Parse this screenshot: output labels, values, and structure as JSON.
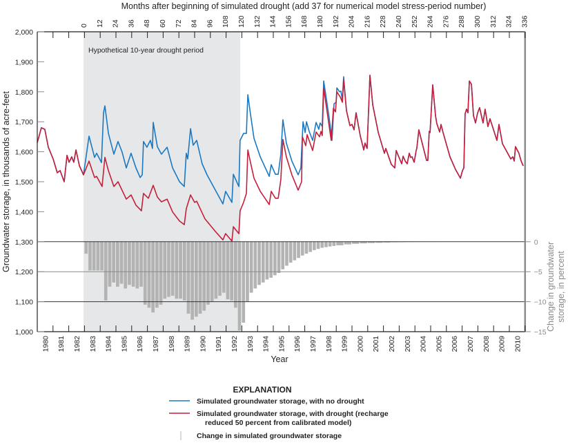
{
  "chart_data": {
    "type": "line",
    "top_axis_label": "Months after beginning of simulated drought (add 37 for numerical model stress-period number)",
    "top_ticks": [
      "0",
      "12",
      "24",
      "36",
      "48",
      "60",
      "72",
      "84",
      "96",
      "108",
      "120",
      "132",
      "144",
      "156",
      "168",
      "180",
      "192",
      "204",
      "216",
      "228",
      "240",
      "252",
      "264",
      "276",
      "288",
      "300",
      "312",
      "324",
      "336"
    ],
    "xlabel": "Year",
    "x_ticks": [
      "1980",
      "1981",
      "1982",
      "1983",
      "1984",
      "1985",
      "1986",
      "1987",
      "1988",
      "1989",
      "1990",
      "1991",
      "1992",
      "1993",
      "1994",
      "1995",
      "1996",
      "1997",
      "1998",
      "1999",
      "2000",
      "2001",
      "2002",
      "2003",
      "2004",
      "2005",
      "2006",
      "2007",
      "2008",
      "2009",
      "2010"
    ],
    "xlim": [
      1980,
      2011
    ],
    "ylabel": "Groundwater storage, in thousands of acre-feet",
    "y_ticks": [
      "1,000",
      "1,100",
      "1,200",
      "1,300",
      "1,400",
      "1,500",
      "1,600",
      "1,700",
      "1,800",
      "1,900",
      "2,000"
    ],
    "ylim": [
      1000,
      2000
    ],
    "y2label_line1": "Change in groundwater",
    "y2label_line2": "storage, in percent",
    "y2_ticks": [
      "0",
      "−5",
      "−10",
      "−15"
    ],
    "y2lim": [
      -15,
      0
    ],
    "drought_period": {
      "label": "Hypothetical 10-year drought period",
      "start": 1982.94,
      "end": 1992.9
    },
    "colors": {
      "no_drought": "#1a78c2",
      "drought": "#c41e3a",
      "change": "#b3b3b3",
      "shade": "#e6e7e8"
    },
    "legend": {
      "title": "EXPLANATION",
      "no_drought": "Simulated groundwater storage, with no drought",
      "drought_line1": "Simulated groundwater storage, with drought (recharge",
      "drought_line2": "reduced 50 percent from calibrated model)",
      "change": "Change in simulated groundwater storage"
    },
    "common_pre": [
      [
        1980.0,
        1630
      ],
      [
        1980.26,
        1680
      ],
      [
        1980.48,
        1675
      ],
      [
        1980.7,
        1615
      ],
      [
        1981.01,
        1576
      ],
      [
        1981.27,
        1530
      ],
      [
        1981.45,
        1537
      ],
      [
        1981.71,
        1500
      ],
      [
        1981.89,
        1588
      ],
      [
        1982.02,
        1565
      ],
      [
        1982.19,
        1583
      ],
      [
        1982.32,
        1565
      ],
      [
        1982.46,
        1606
      ],
      [
        1982.68,
        1553
      ],
      [
        1982.94,
        1523
      ]
    ],
    "series": [
      {
        "name": "Simulated groundwater storage, with no drought",
        "points": [
          [
            1983.29,
            1652
          ],
          [
            1983.64,
            1581
          ],
          [
            1983.77,
            1595
          ],
          [
            1984.08,
            1564
          ],
          [
            1984.21,
            1730
          ],
          [
            1984.3,
            1753
          ],
          [
            1984.52,
            1661
          ],
          [
            1984.87,
            1592
          ],
          [
            1985.13,
            1634
          ],
          [
            1985.39,
            1599
          ],
          [
            1985.66,
            1546
          ],
          [
            1985.96,
            1595
          ],
          [
            1986.27,
            1546
          ],
          [
            1986.54,
            1514
          ],
          [
            1986.67,
            1523
          ],
          [
            1986.75,
            1634
          ],
          [
            1986.97,
            1615
          ],
          [
            1987.19,
            1638
          ],
          [
            1987.32,
            1611
          ],
          [
            1987.37,
            1698
          ],
          [
            1987.63,
            1617
          ],
          [
            1987.89,
            1592
          ],
          [
            1988.25,
            1615
          ],
          [
            1988.6,
            1546
          ],
          [
            1989.04,
            1500
          ],
          [
            1989.34,
            1484
          ],
          [
            1989.47,
            1595
          ],
          [
            1989.56,
            1576
          ],
          [
            1989.74,
            1677
          ],
          [
            1989.91,
            1622
          ],
          [
            1990.13,
            1638
          ],
          [
            1990.48,
            1560
          ],
          [
            1990.79,
            1523
          ],
          [
            1991.32,
            1472
          ],
          [
            1991.8,
            1426
          ],
          [
            1991.97,
            1468
          ],
          [
            1992.37,
            1431
          ],
          [
            1992.46,
            1525
          ],
          [
            1992.81,
            1484
          ],
          [
            1992.89,
            1638
          ],
          [
            1993.11,
            1661
          ],
          [
            1993.29,
            1661
          ],
          [
            1993.38,
            1790
          ],
          [
            1993.55,
            1726
          ],
          [
            1993.77,
            1645
          ],
          [
            1994.17,
            1583
          ],
          [
            1994.74,
            1518
          ],
          [
            1994.87,
            1557
          ],
          [
            1995.13,
            1525
          ],
          [
            1995.31,
            1525
          ],
          [
            1995.48,
            1592
          ],
          [
            1995.61,
            1707
          ],
          [
            1995.83,
            1629
          ],
          [
            1996.18,
            1569
          ],
          [
            1996.58,
            1523
          ],
          [
            1996.75,
            1546
          ],
          [
            1996.89,
            1700
          ],
          [
            1997.02,
            1664
          ],
          [
            1997.11,
            1700
          ],
          [
            1997.28,
            1668
          ],
          [
            1997.5,
            1638
          ],
          [
            1997.72,
            1698
          ],
          [
            1997.89,
            1675
          ],
          [
            1997.98,
            1696
          ],
          [
            1998.11,
            1684
          ],
          [
            1998.2,
            1836
          ],
          [
            1998.55,
            1714
          ],
          [
            1998.73,
            1638
          ],
          [
            1998.86,
            1760
          ],
          [
            1998.99,
            1765
          ],
          [
            1999.04,
            1813
          ],
          [
            1999.21,
            1800
          ],
          [
            1999.3,
            1802
          ],
          [
            1999.39,
            1772
          ],
          [
            1999.47,
            1850
          ]
        ]
      },
      {
        "name": "Simulated groundwater storage, with drought (recharge reduced 50 percent from calibrated model)",
        "points": [
          [
            1983.29,
            1569
          ],
          [
            1983.64,
            1514
          ],
          [
            1983.77,
            1518
          ],
          [
            1984.12,
            1484
          ],
          [
            1984.3,
            1581
          ],
          [
            1984.52,
            1537
          ],
          [
            1984.87,
            1484
          ],
          [
            1985.13,
            1500
          ],
          [
            1985.66,
            1442
          ],
          [
            1985.96,
            1456
          ],
          [
            1986.27,
            1422
          ],
          [
            1986.62,
            1403
          ],
          [
            1986.75,
            1461
          ],
          [
            1987.06,
            1445
          ],
          [
            1987.37,
            1488
          ],
          [
            1987.63,
            1449
          ],
          [
            1987.89,
            1433
          ],
          [
            1988.25,
            1442
          ],
          [
            1988.6,
            1399
          ],
          [
            1989.04,
            1369
          ],
          [
            1989.34,
            1357
          ],
          [
            1989.47,
            1410
          ],
          [
            1989.74,
            1456
          ],
          [
            1990.0,
            1431
          ],
          [
            1990.13,
            1435
          ],
          [
            1990.66,
            1376
          ],
          [
            1991.32,
            1334
          ],
          [
            1991.8,
            1306
          ],
          [
            1991.97,
            1327
          ],
          [
            1992.37,
            1302
          ],
          [
            1992.46,
            1350
          ],
          [
            1992.81,
            1327
          ],
          [
            1992.89,
            1403
          ],
          [
            1993.11,
            1431
          ],
          [
            1993.29,
            1461
          ],
          [
            1993.38,
            1606
          ],
          [
            1993.55,
            1565
          ],
          [
            1993.77,
            1512
          ],
          [
            1994.17,
            1468
          ],
          [
            1994.74,
            1424
          ],
          [
            1994.87,
            1468
          ],
          [
            1995.13,
            1445
          ],
          [
            1995.31,
            1445
          ],
          [
            1995.48,
            1507
          ],
          [
            1995.61,
            1641
          ],
          [
            1995.83,
            1583
          ],
          [
            1996.18,
            1523
          ],
          [
            1996.58,
            1472
          ],
          [
            1996.8,
            1500
          ],
          [
            1996.85,
            1650
          ],
          [
            1997.06,
            1620
          ],
          [
            1997.15,
            1657
          ],
          [
            1997.5,
            1604
          ],
          [
            1997.72,
            1666
          ],
          [
            1997.94,
            1650
          ],
          [
            1998.03,
            1668
          ],
          [
            1998.11,
            1654
          ],
          [
            1998.2,
            1813
          ],
          [
            1998.68,
            1638
          ],
          [
            1998.82,
            1745
          ],
          [
            1998.95,
            1733
          ],
          [
            1999.04,
            1800
          ],
          [
            1999.25,
            1783
          ],
          [
            1999.39,
            1765
          ],
          [
            1999.47,
            1841
          ]
        ]
      }
    ],
    "common_post": [
      [
        1999.65,
        1737
      ],
      [
        1999.87,
        1687
      ],
      [
        2000.0,
        1691
      ],
      [
        2000.13,
        1673
      ],
      [
        2000.26,
        1730
      ],
      [
        2000.53,
        1652
      ],
      [
        2000.75,
        1606
      ],
      [
        2000.83,
        1629
      ],
      [
        2000.96,
        1611
      ],
      [
        2001.14,
        1855
      ],
      [
        2001.32,
        1756
      ],
      [
        2001.67,
        1664
      ],
      [
        2002.06,
        1595
      ],
      [
        2002.15,
        1611
      ],
      [
        2002.5,
        1558
      ],
      [
        2002.72,
        1546
      ],
      [
        2002.81,
        1604
      ],
      [
        2003.16,
        1560
      ],
      [
        2003.25,
        1585
      ],
      [
        2003.38,
        1569
      ],
      [
        2003.51,
        1560
      ],
      [
        2003.64,
        1595
      ],
      [
        2003.73,
        1581
      ],
      [
        2003.82,
        1583
      ],
      [
        2003.95,
        1565
      ],
      [
        2004.08,
        1604
      ],
      [
        2004.12,
        1611
      ],
      [
        2004.25,
        1673
      ],
      [
        2004.47,
        1627
      ],
      [
        2004.74,
        1571
      ],
      [
        2004.82,
        1571
      ],
      [
        2004.91,
        1668
      ],
      [
        2004.96,
        1664
      ],
      [
        2005.13,
        1823
      ],
      [
        2005.31,
        1719
      ],
      [
        2005.39,
        1694
      ],
      [
        2005.57,
        1666
      ],
      [
        2005.66,
        1691
      ],
      [
        2005.79,
        1664
      ],
      [
        2006.23,
        1583
      ],
      [
        2006.58,
        1541
      ],
      [
        2006.89,
        1512
      ],
      [
        2007.02,
        1537
      ],
      [
        2007.11,
        1546
      ],
      [
        2007.19,
        1726
      ],
      [
        2007.28,
        1742
      ],
      [
        2007.37,
        1730
      ],
      [
        2007.46,
        1836
      ],
      [
        2007.59,
        1825
      ],
      [
        2007.72,
        1721
      ],
      [
        2007.85,
        1696
      ],
      [
        2007.98,
        1728
      ],
      [
        2008.11,
        1747
      ],
      [
        2008.33,
        1696
      ],
      [
        2008.46,
        1742
      ],
      [
        2008.64,
        1684
      ],
      [
        2008.77,
        1710
      ],
      [
        2009.21,
        1638
      ],
      [
        2009.34,
        1691
      ],
      [
        2009.56,
        1627
      ],
      [
        2009.78,
        1606
      ],
      [
        2010.09,
        1576
      ],
      [
        2010.22,
        1583
      ],
      [
        2010.31,
        1569
      ],
      [
        2010.39,
        1617
      ],
      [
        2010.61,
        1595
      ],
      [
        2010.75,
        1569
      ],
      [
        2010.88,
        1553
      ]
    ],
    "percent_change": [
      [
        1983.0,
        -2
      ],
      [
        1983.25,
        -4.8
      ],
      [
        1983.5,
        -4.8
      ],
      [
        1983.75,
        -4.8
      ],
      [
        1984.0,
        -4.8
      ],
      [
        1984.25,
        -9.8
      ],
      [
        1984.5,
        -7.5
      ],
      [
        1984.75,
        -6.8
      ],
      [
        1985.0,
        -7.5
      ],
      [
        1985.25,
        -7.0
      ],
      [
        1985.5,
        -7.8
      ],
      [
        1985.75,
        -7.2
      ],
      [
        1986.0,
        -7.5
      ],
      [
        1986.25,
        -7.8
      ],
      [
        1986.5,
        -7.5
      ],
      [
        1986.75,
        -10.5
      ],
      [
        1987.0,
        -11
      ],
      [
        1987.25,
        -11.8
      ],
      [
        1987.5,
        -11
      ],
      [
        1987.75,
        -10.5
      ],
      [
        1988.0,
        -9.5
      ],
      [
        1988.25,
        -9.2
      ],
      [
        1988.5,
        -9.0
      ],
      [
        1988.75,
        -9.5
      ],
      [
        1989.0,
        -9.5
      ],
      [
        1989.25,
        -9.8
      ],
      [
        1989.5,
        -12
      ],
      [
        1989.75,
        -13
      ],
      [
        1990.0,
        -12.5
      ],
      [
        1990.25,
        -12
      ],
      [
        1990.5,
        -11.5
      ],
      [
        1990.75,
        -10.5
      ],
      [
        1991.0,
        -10
      ],
      [
        1991.25,
        -9.5
      ],
      [
        1991.5,
        -9
      ],
      [
        1991.75,
        -8.5
      ],
      [
        1992.0,
        -9.6
      ],
      [
        1992.25,
        -9.8
      ],
      [
        1992.5,
        -11
      ],
      [
        1992.75,
        -14.8
      ],
      [
        1993.0,
        -13.5
      ],
      [
        1993.25,
        -10
      ],
      [
        1993.5,
        -8.5
      ],
      [
        1993.75,
        -7.8
      ],
      [
        1994.0,
        -7.2
      ],
      [
        1994.25,
        -6.8
      ],
      [
        1994.5,
        -6.3
      ],
      [
        1994.75,
        -6.0
      ],
      [
        1995.0,
        -5.6
      ],
      [
        1995.25,
        -5.2
      ],
      [
        1995.5,
        -4.6
      ],
      [
        1995.75,
        -4.0
      ],
      [
        1996.0,
        -3.5
      ],
      [
        1996.25,
        -3.1
      ],
      [
        1996.5,
        -2.7
      ],
      [
        1996.75,
        -2.3
      ],
      [
        1997.0,
        -2.0
      ],
      [
        1997.25,
        -1.7
      ],
      [
        1997.5,
        -1.4
      ],
      [
        1997.75,
        -1.2
      ],
      [
        1998.0,
        -1.0
      ],
      [
        1998.25,
        -0.9
      ],
      [
        1998.5,
        -0.8
      ],
      [
        1998.75,
        -0.7
      ],
      [
        1999.0,
        -0.6
      ],
      [
        1999.5,
        -0.45
      ],
      [
        2000.0,
        -0.35
      ],
      [
        2000.5,
        -0.28
      ],
      [
        2001.0,
        -0.22
      ],
      [
        2001.5,
        -0.18
      ],
      [
        2002.0,
        -0.14
      ],
      [
        2002.5,
        -0.1
      ],
      [
        2003.0,
        -0.08
      ],
      [
        2003.5,
        -0.06
      ],
      [
        2004.0,
        -0.04
      ],
      [
        2004.5,
        -0.03
      ],
      [
        2005.0,
        -0.02
      ]
    ]
  }
}
